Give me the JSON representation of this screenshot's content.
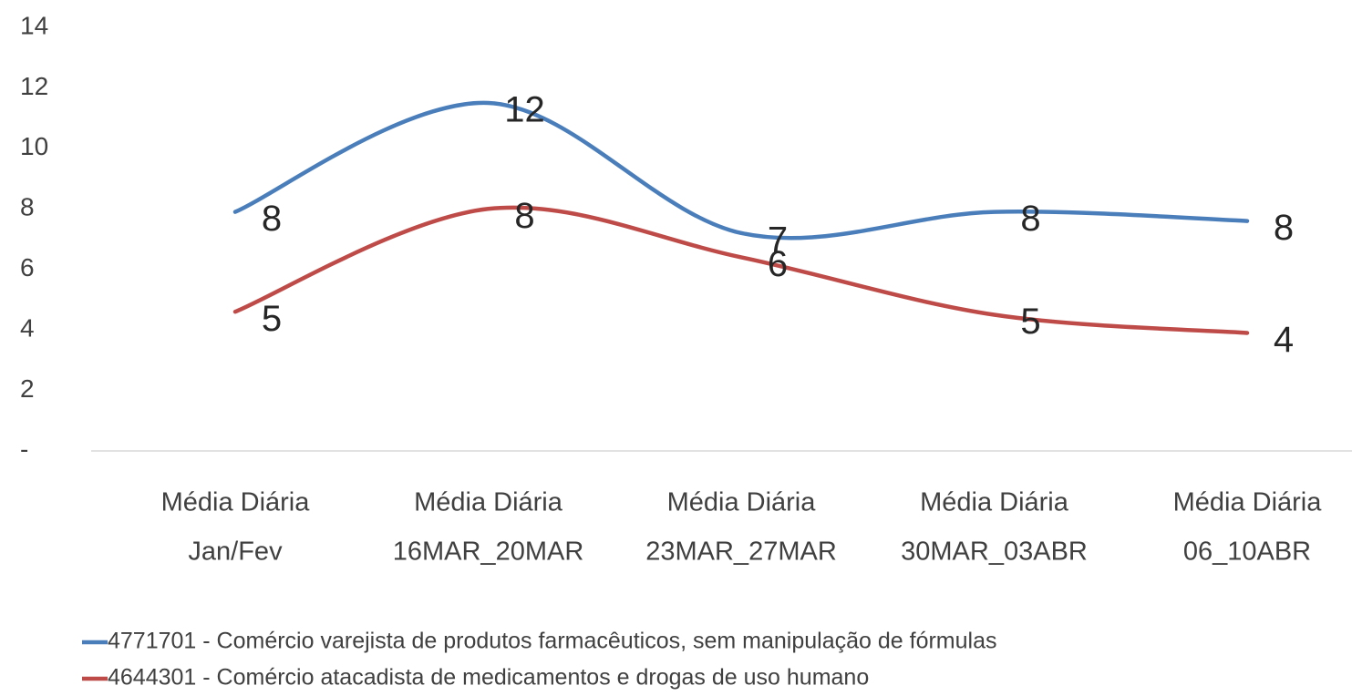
{
  "chart_data": {
    "type": "line",
    "categories": [
      [
        "Média Diária",
        "Jan/Fev"
      ],
      [
        "Média Diária",
        "16MAR_20MAR"
      ],
      [
        "Média Diária",
        "23MAR_27MAR"
      ],
      [
        "Média Diária",
        "30MAR_03ABR"
      ],
      [
        "Média Diária",
        "06_10ABR"
      ]
    ],
    "series": [
      {
        "name": "4771701 - Comércio varejista de produtos farmacêuticos, sem manipulação de fórmulas",
        "color": "#4a7ebb",
        "values": [
          7.9,
          11.5,
          7.2,
          7.9,
          7.6
        ],
        "value_labels": [
          "8",
          "12",
          "7",
          "8",
          "8"
        ]
      },
      {
        "name": "4644301 - Comércio atacadista de medicamentos e drogas de uso humano",
        "color": "#be4b48",
        "values": [
          4.6,
          8.0,
          6.4,
          4.5,
          3.9
        ],
        "value_labels": [
          "5",
          "8",
          "6",
          "5",
          "4"
        ]
      }
    ],
    "ylim": [
      0,
      14
    ],
    "yticks": [
      {
        "value": 0,
        "label": "-"
      },
      2,
      4,
      6,
      8,
      10,
      12,
      14
    ],
    "grid": false,
    "legend": "bottom"
  }
}
